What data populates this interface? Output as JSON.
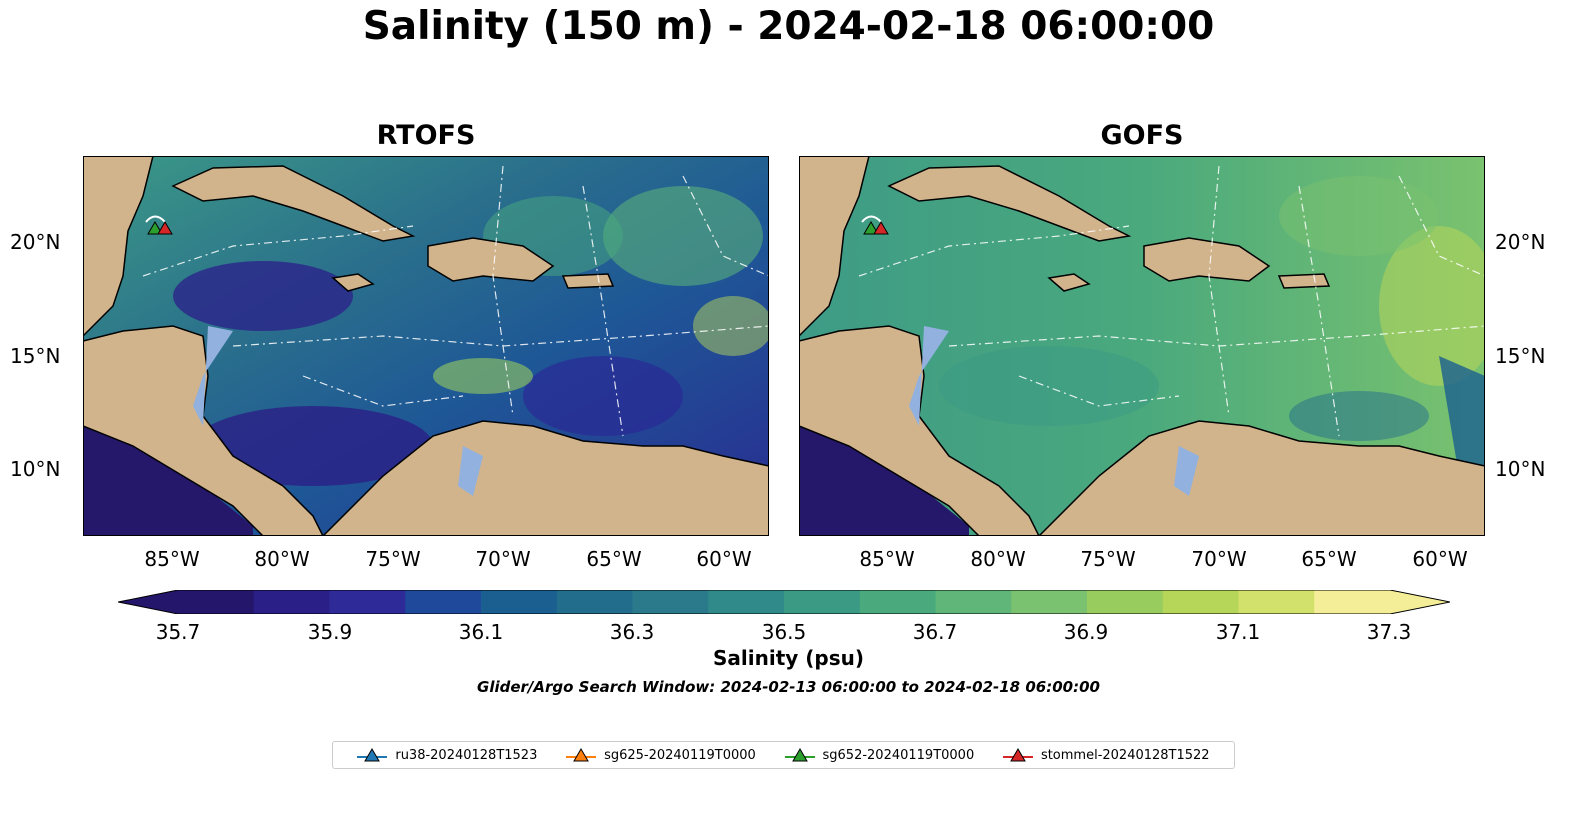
{
  "title": "Salinity (150 m) - 2024-02-18 06:00:00",
  "panels": [
    {
      "title": "RTOFS"
    },
    {
      "title": "GOFS"
    }
  ],
  "lat_ticks": [
    "20°N",
    "15°N",
    "10°N"
  ],
  "lon_ticks": [
    "85°W",
    "80°W",
    "75°W",
    "70°W",
    "65°W",
    "60°W"
  ],
  "colorbar": {
    "label": "Salinity (psu)",
    "ticks": [
      "35.7",
      "35.9",
      "36.1",
      "36.3",
      "36.5",
      "36.7",
      "36.9",
      "37.1",
      "37.3"
    ],
    "colors": [
      "#24166a",
      "#2a1f86",
      "#2e2b99",
      "#1f4a9b",
      "#1a5f90",
      "#236d8c",
      "#2b7a8c",
      "#318a8a",
      "#3a9a84",
      "#4aa97d",
      "#5fb678",
      "#7ac26f",
      "#98cc5f",
      "#b6d65a",
      "#d2e06c",
      "#f4ee98"
    ]
  },
  "search_window": "Glider/Argo Search Window: 2024-02-13 06:00:00 to 2024-02-18 06:00:00",
  "legend": [
    {
      "name": "ru38-20240128T1523",
      "color": "#1f77b4"
    },
    {
      "name": "sg625-20240119T0000",
      "color": "#ff7f0e"
    },
    {
      "name": "sg652-20240119T0000",
      "color": "#2ca02c"
    },
    {
      "name": "stommel-20240128T1522",
      "color": "#d62728"
    }
  ],
  "map_colors": {
    "land": "#d2b48c",
    "shelf": "#92b1df",
    "rtofs_sea": "#2f7e8e",
    "gofs_sea": "#4aa77e",
    "pacific": "#25186b"
  }
}
